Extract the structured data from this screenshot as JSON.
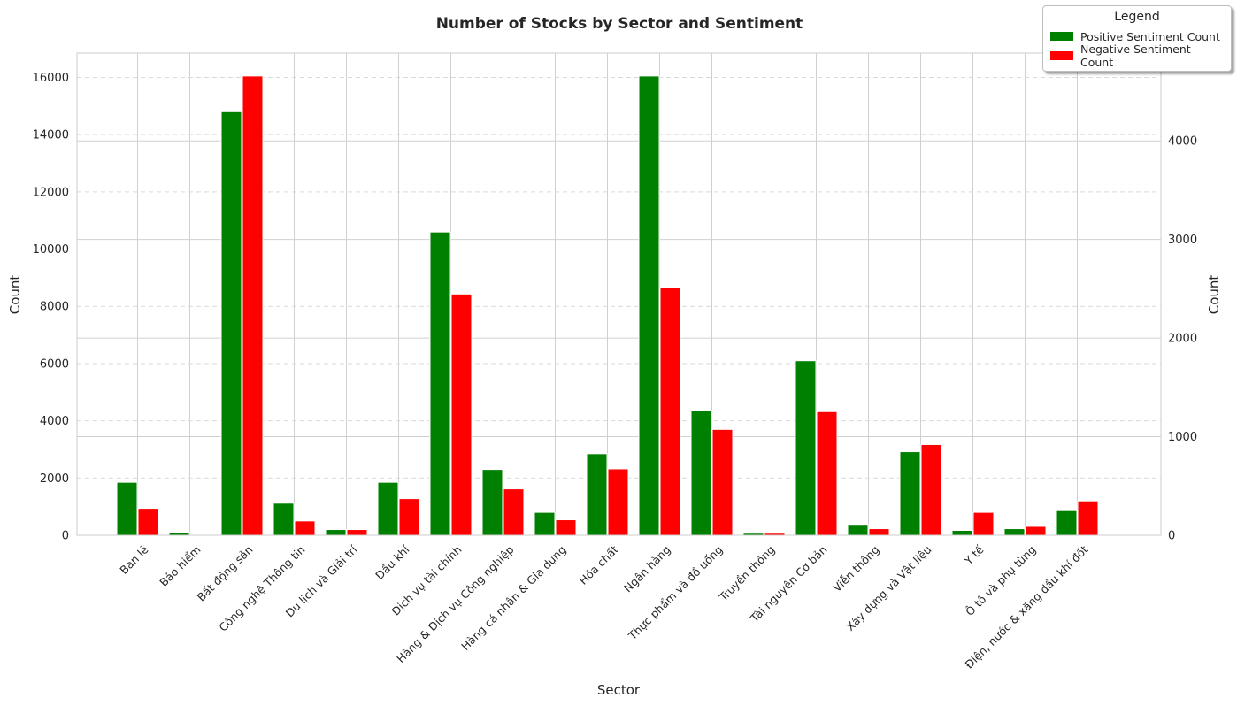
{
  "chart_data": {
    "type": "bar",
    "title": "Number of Stocks by Sector and Sentiment",
    "xlabel": "Sector",
    "ylabel_left": "Count",
    "ylabel_right": "Count",
    "ylim_left": [
      0,
      16850
    ],
    "ylim_right": [
      0,
      4890
    ],
    "yticks_left": [
      0,
      2000,
      4000,
      6000,
      8000,
      10000,
      12000,
      14000,
      16000
    ],
    "yticks_right": [
      0,
      1000,
      2000,
      3000,
      4000
    ],
    "grid": true,
    "categories": [
      "Bán lẻ",
      "Bảo hiểm",
      "Bất động sản",
      "Công nghệ Thông tin",
      "Du lịch và Giải trí",
      "Dầu khí",
      "Dịch vụ tài chính",
      "Hàng & Dịch vụ Công nghiệp",
      "Hàng cá nhân & Gia dụng",
      "Hóa chất",
      "Ngân hàng",
      "Thực phẩm và đồ uống",
      "Truyền thông",
      "Tài nguyên Cơ bản",
      "Viễn thông",
      "Xây dựng và Vật liệu",
      "Y tế",
      "Ô tô và phụ tùng",
      "Điện, nước & xăng dầu khí đốt"
    ],
    "series": [
      {
        "name": "Positive Sentiment Count",
        "color": "#008000",
        "axis": "left",
        "values": [
          1850,
          100,
          14800,
          1120,
          200,
          1850,
          10600,
          2300,
          800,
          2850,
          16050,
          4350,
          70,
          6100,
          380,
          2920,
          170,
          230,
          860
        ]
      },
      {
        "name": "Negative Sentiment Count",
        "color": "#ff0000",
        "axis": "left",
        "values": [
          940,
          0,
          16050,
          500,
          200,
          1280,
          8430,
          1620,
          540,
          2320,
          8650,
          3700,
          70,
          4320,
          230,
          3170,
          800,
          310,
          1200
        ]
      }
    ],
    "legend": {
      "title": "Legend",
      "placement": "top-right"
    }
  }
}
